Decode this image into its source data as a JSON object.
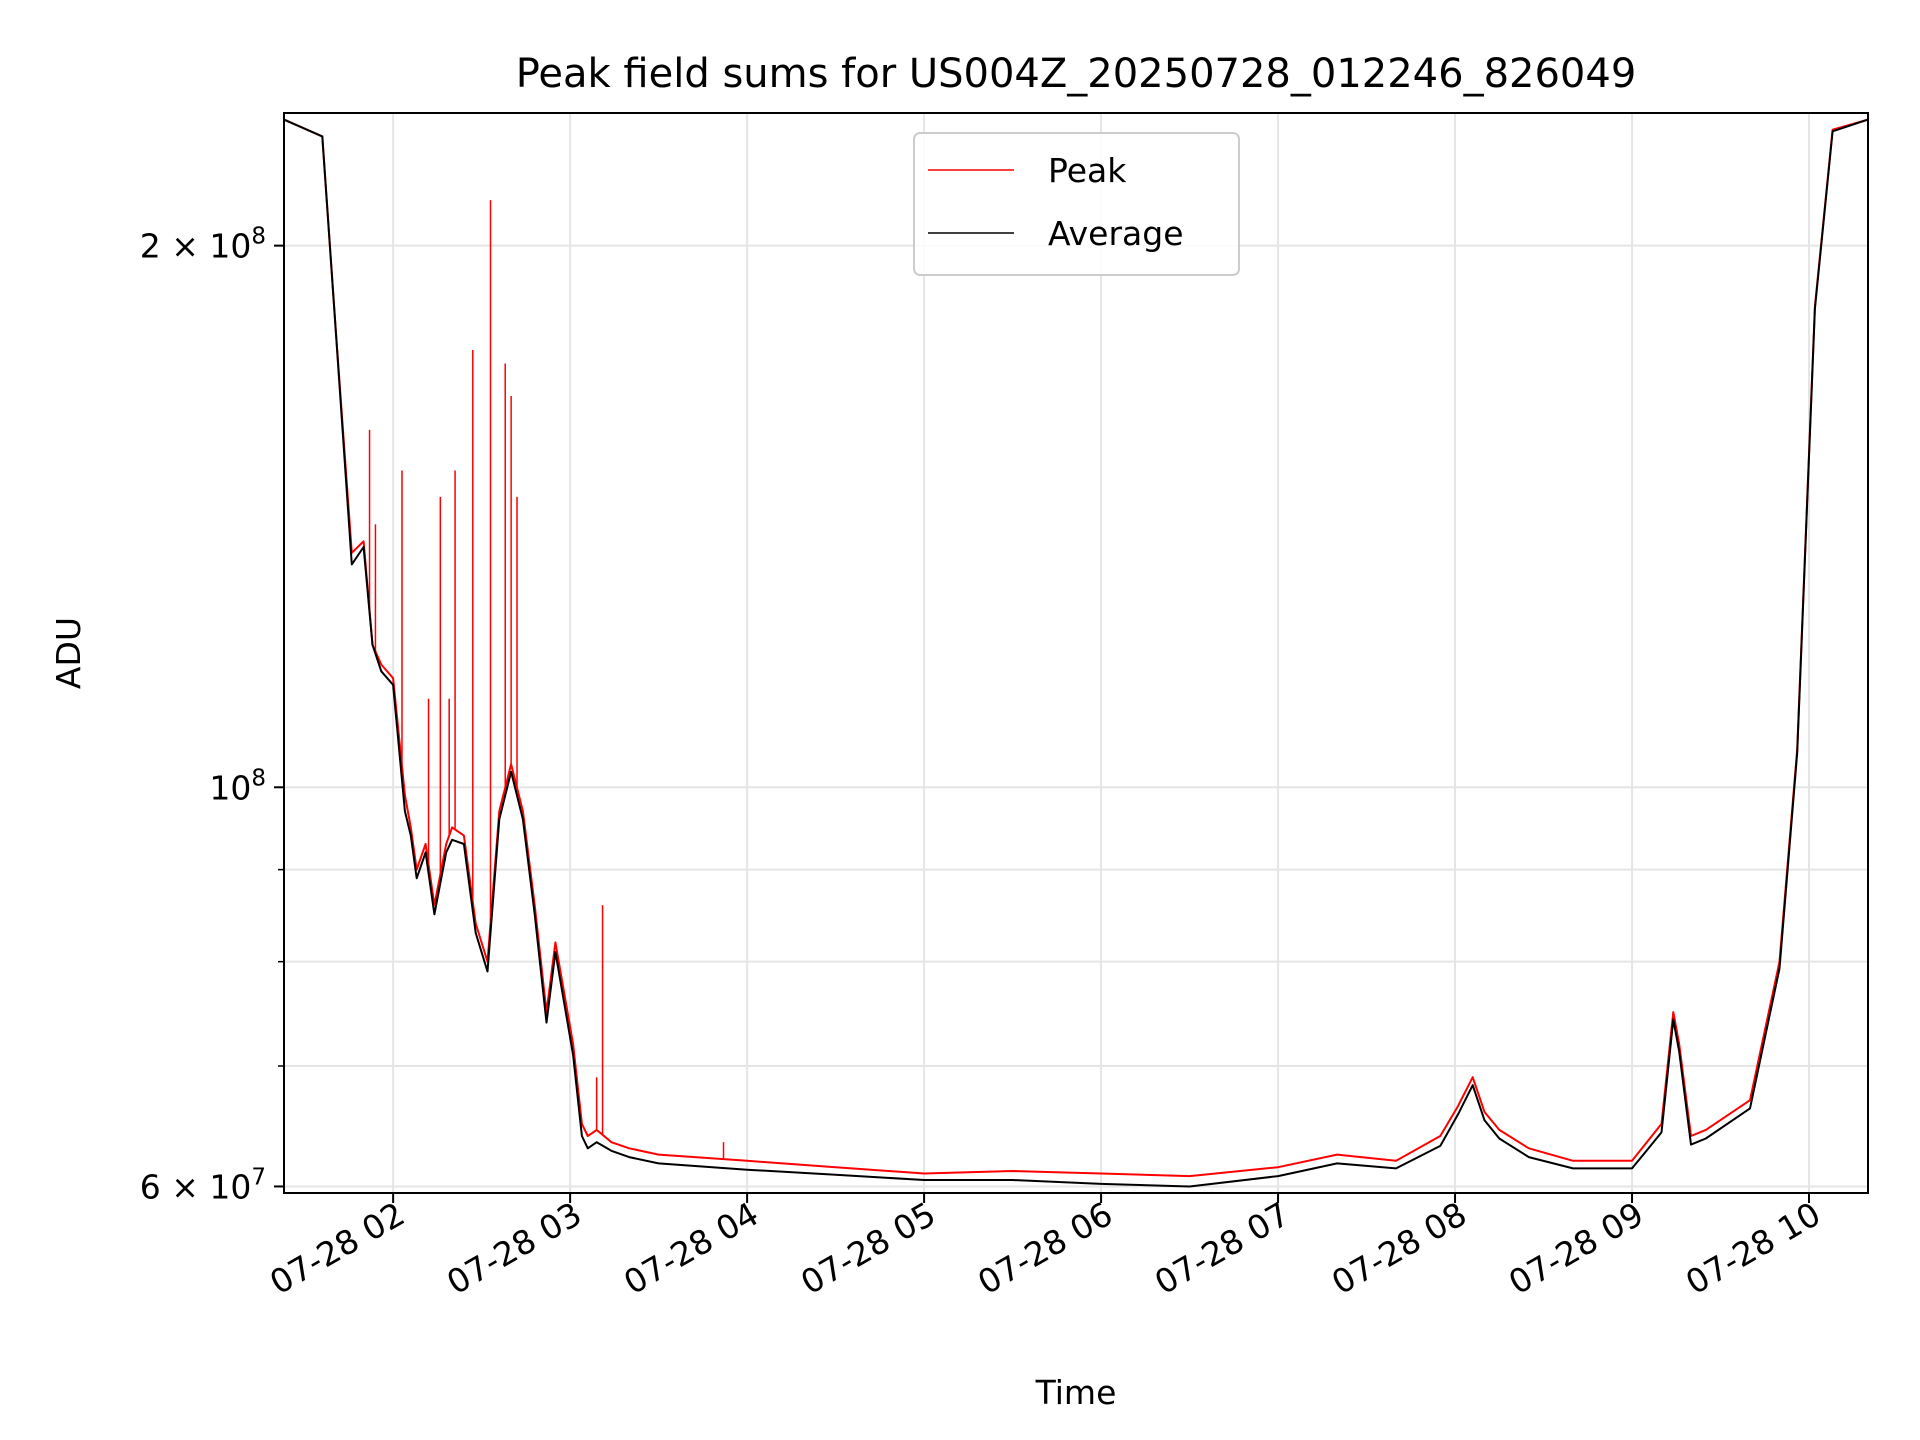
{
  "chart_data": {
    "type": "line",
    "title": "Peak field sums for US004Z_20250728_012246_826049",
    "xlabel": "Time",
    "ylabel": "ADU",
    "y_scale": "log",
    "grid": true,
    "legend_position": "top-center",
    "xlim": [
      "2025-07-28 01:23",
      "2025-07-28 10:20"
    ],
    "ylim": [
      59500000,
      237000000
    ],
    "x_ticks": [
      {
        "value": "2025-07-28 02:00",
        "label": "07-28 02"
      },
      {
        "value": "2025-07-28 03:00",
        "label": "07-28 03"
      },
      {
        "value": "2025-07-28 04:00",
        "label": "07-28 04"
      },
      {
        "value": "2025-07-28 05:00",
        "label": "07-28 05"
      },
      {
        "value": "2025-07-28 06:00",
        "label": "07-28 06"
      },
      {
        "value": "2025-07-28 07:00",
        "label": "07-28 07"
      },
      {
        "value": "2025-07-28 08:00",
        "label": "07-28 08"
      },
      {
        "value": "2025-07-28 09:00",
        "label": "07-28 09"
      },
      {
        "value": "2025-07-28 10:00",
        "label": "07-28 10"
      }
    ],
    "y_major_ticks": [
      {
        "value": 60000000,
        "mantissa": "6",
        "exponent": "7"
      },
      {
        "value": 100000000,
        "mantissa": "",
        "exponent": "8"
      },
      {
        "value": 200000000,
        "mantissa": "2",
        "exponent": "8"
      }
    ],
    "y_minor_ticks": [
      70000000,
      80000000,
      90000000
    ],
    "series": [
      {
        "name": "Peak",
        "color": "#ff0000",
        "x": [
          "2025-07-28 01:23",
          "2025-07-28 01:36",
          "2025-07-28 01:40",
          "2025-07-28 01:46",
          "2025-07-28 01:50",
          "2025-07-28 01:53",
          "2025-07-28 01:56",
          "2025-07-28 02:00",
          "2025-07-28 02:04",
          "2025-07-28 02:06",
          "2025-07-28 02:08",
          "2025-07-28 02:11",
          "2025-07-28 02:14",
          "2025-07-28 02:18",
          "2025-07-28 02:20",
          "2025-07-28 02:24",
          "2025-07-28 02:28",
          "2025-07-28 02:32",
          "2025-07-28 02:36",
          "2025-07-28 02:40",
          "2025-07-28 02:44",
          "2025-07-28 02:48",
          "2025-07-28 02:52",
          "2025-07-28 02:55",
          "2025-07-28 03:01",
          "2025-07-28 03:04",
          "2025-07-28 03:06",
          "2025-07-28 03:09",
          "2025-07-28 03:14",
          "2025-07-28 03:20",
          "2025-07-28 03:30",
          "2025-07-28 04:00",
          "2025-07-28 04:30",
          "2025-07-28 05:00",
          "2025-07-28 05:30",
          "2025-07-28 06:00",
          "2025-07-28 06:30",
          "2025-07-28 07:00",
          "2025-07-28 07:20",
          "2025-07-28 07:40",
          "2025-07-28 07:55",
          "2025-07-28 08:01",
          "2025-07-28 08:06",
          "2025-07-28 08:10",
          "2025-07-28 08:15",
          "2025-07-28 08:25",
          "2025-07-28 08:40",
          "2025-07-28 09:00",
          "2025-07-28 09:10",
          "2025-07-28 09:14",
          "2025-07-28 09:16",
          "2025-07-28 09:20",
          "2025-07-28 09:25",
          "2025-07-28 09:40",
          "2025-07-28 09:50",
          "2025-07-28 09:56",
          "2025-07-28 10:02",
          "2025-07-28 10:08",
          "2025-07-28 10:20"
        ],
        "y": [
          235000000,
          230000000,
          185000000,
          135000000,
          137000000,
          120000000,
          117000000,
          115000000,
          99000000,
          95000000,
          90000000,
          93000000,
          86000000,
          93000000,
          95000000,
          94000000,
          84000000,
          80000000,
          97000000,
          103000000,
          97000000,
          86000000,
          75000000,
          82000000,
          72000000,
          65000000,
          64000000,
          64500000,
          63500000,
          63000000,
          62500000,
          62000000,
          61500000,
          61000000,
          61200000,
          61000000,
          60800000,
          61500000,
          62500000,
          62000000,
          64000000,
          66500000,
          69000000,
          66000000,
          64500000,
          63000000,
          62000000,
          62000000,
          65000000,
          75000000,
          72000000,
          64000000,
          64500000,
          67000000,
          80000000,
          105000000,
          185000000,
          232000000,
          235000000
        ],
        "spikes": [
          {
            "x": "2025-07-28 01:52",
            "y": 158000000
          },
          {
            "x": "2025-07-28 01:54",
            "y": 140000000
          },
          {
            "x": "2025-07-28 02:03",
            "y": 150000000
          },
          {
            "x": "2025-07-28 02:12",
            "y": 112000000
          },
          {
            "x": "2025-07-28 02:16",
            "y": 145000000
          },
          {
            "x": "2025-07-28 02:19",
            "y": 112000000
          },
          {
            "x": "2025-07-28 02:21",
            "y": 150000000
          },
          {
            "x": "2025-07-28 02:27",
            "y": 175000000
          },
          {
            "x": "2025-07-28 02:33",
            "y": 212000000
          },
          {
            "x": "2025-07-28 02:38",
            "y": 172000000
          },
          {
            "x": "2025-07-28 02:40",
            "y": 165000000
          },
          {
            "x": "2025-07-28 02:42",
            "y": 145000000
          },
          {
            "x": "2025-07-28 03:11",
            "y": 86000000
          },
          {
            "x": "2025-07-28 03:09",
            "y": 69000000
          },
          {
            "x": "2025-07-28 03:52",
            "y": 63500000
          }
        ]
      },
      {
        "name": "Average",
        "color": "#000000",
        "x": [
          "2025-07-28 01:23",
          "2025-07-28 01:36",
          "2025-07-28 01:40",
          "2025-07-28 01:46",
          "2025-07-28 01:50",
          "2025-07-28 01:53",
          "2025-07-28 01:56",
          "2025-07-28 02:00",
          "2025-07-28 02:04",
          "2025-07-28 02:06",
          "2025-07-28 02:08",
          "2025-07-28 02:11",
          "2025-07-28 02:14",
          "2025-07-28 02:18",
          "2025-07-28 02:20",
          "2025-07-28 02:24",
          "2025-07-28 02:28",
          "2025-07-28 02:32",
          "2025-07-28 02:36",
          "2025-07-28 02:40",
          "2025-07-28 02:44",
          "2025-07-28 02:48",
          "2025-07-28 02:52",
          "2025-07-28 02:55",
          "2025-07-28 03:01",
          "2025-07-28 03:04",
          "2025-07-28 03:06",
          "2025-07-28 03:09",
          "2025-07-28 03:14",
          "2025-07-28 03:20",
          "2025-07-28 03:30",
          "2025-07-28 04:00",
          "2025-07-28 04:30",
          "2025-07-28 05:00",
          "2025-07-28 05:30",
          "2025-07-28 06:00",
          "2025-07-28 06:30",
          "2025-07-28 07:00",
          "2025-07-28 07:20",
          "2025-07-28 07:40",
          "2025-07-28 07:55",
          "2025-07-28 08:01",
          "2025-07-28 08:06",
          "2025-07-28 08:10",
          "2025-07-28 08:15",
          "2025-07-28 08:25",
          "2025-07-28 08:40",
          "2025-07-28 09:00",
          "2025-07-28 09:10",
          "2025-07-28 09:14",
          "2025-07-28 09:16",
          "2025-07-28 09:20",
          "2025-07-28 09:25",
          "2025-07-28 09:40",
          "2025-07-28 09:50",
          "2025-07-28 09:56",
          "2025-07-28 10:02",
          "2025-07-28 10:08",
          "2025-07-28 10:20"
        ],
        "y": [
          235000000,
          230000000,
          185000000,
          133000000,
          136000000,
          120000000,
          116000000,
          114000000,
          97000000,
          94000000,
          89000000,
          92000000,
          85000000,
          92000000,
          93500000,
          93000000,
          83000000,
          79000000,
          96000000,
          102000000,
          96000000,
          85000000,
          74000000,
          81000000,
          71000000,
          64000000,
          63000000,
          63500000,
          62800000,
          62300000,
          61800000,
          61300000,
          60900000,
          60500000,
          60500000,
          60200000,
          60000000,
          60800000,
          61800000,
          61400000,
          63200000,
          65800000,
          68300000,
          65300000,
          63800000,
          62300000,
          61400000,
          61400000,
          64300000,
          74300000,
          71300000,
          63300000,
          63800000,
          66300000,
          79300000,
          104500000,
          184500000,
          231500000,
          235000000
        ]
      }
    ]
  }
}
